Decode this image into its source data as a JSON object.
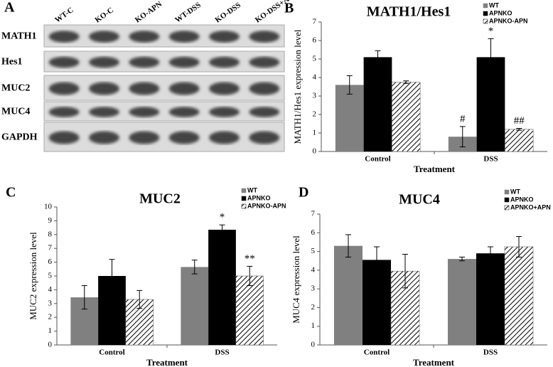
{
  "blot": {
    "panel": "A",
    "lanes": [
      "WT-C",
      "KO-C",
      "KO-APN",
      "WT-DSS",
      "KO-DSS",
      "KO-DSS+APN"
    ],
    "rows": [
      "MATH1",
      "Hes1",
      "MUC2",
      "MUC4",
      "GAPDH"
    ]
  },
  "chart_data": [
    {
      "type": "bar",
      "panel": "B",
      "title": "MATH1/Hes1",
      "x_label": "Treatment",
      "y_label": "MATH1/Hes1 expression level",
      "categories": [
        "Control",
        "DSS"
      ],
      "ylim": [
        0,
        7
      ],
      "yticks": [
        0,
        1,
        2,
        3,
        4,
        5,
        6,
        7
      ],
      "series": [
        {
          "name": "WT",
          "color": "#808080",
          "values": [
            3.6,
            0.8
          ],
          "errors": [
            0.5,
            0.55
          ],
          "markers": [
            null,
            "#"
          ]
        },
        {
          "name": "APNKO",
          "color": "#000000",
          "values": [
            5.1,
            5.1
          ],
          "errors": [
            0.35,
            1.0
          ],
          "markers": [
            null,
            "*"
          ]
        },
        {
          "name": "APNKO-APN",
          "color": "#000000",
          "pattern": "hatch",
          "values": [
            3.75,
            1.2
          ],
          "errors": [
            0.07,
            0.05
          ],
          "markers": [
            null,
            "##"
          ]
        }
      ]
    },
    {
      "type": "bar",
      "panel": "C",
      "title": "MUC2",
      "x_label": "Treatment",
      "y_label": "MUC2 expression level",
      "categories": [
        "Control",
        "DSS"
      ],
      "ylim": [
        0,
        10
      ],
      "yticks": [
        0,
        1,
        2,
        3,
        4,
        5,
        6,
        7,
        8,
        9,
        10
      ],
      "series": [
        {
          "name": "WT",
          "color": "#808080",
          "values": [
            3.45,
            5.65
          ],
          "errors": [
            0.85,
            0.5
          ]
        },
        {
          "name": "APNKO",
          "color": "#000000",
          "values": [
            5.0,
            8.35
          ],
          "errors": [
            1.2,
            0.35
          ],
          "markers": [
            null,
            "*"
          ]
        },
        {
          "name": "APNKO-APN",
          "color": "#000000",
          "pattern": "hatch",
          "values": [
            3.3,
            5.0
          ],
          "errors": [
            0.65,
            0.7
          ],
          "markers": [
            null,
            "**"
          ]
        }
      ]
    },
    {
      "type": "bar",
      "panel": "D",
      "title": "MUC4",
      "x_label": "Treatment",
      "y_label": "MUC4 expression level",
      "categories": [
        "Control",
        "DSS"
      ],
      "ylim": [
        0,
        7
      ],
      "yticks": [
        0,
        1,
        2,
        3,
        4,
        5,
        6,
        7
      ],
      "series": [
        {
          "name": "WT",
          "color": "#808080",
          "values": [
            5.3,
            4.6
          ],
          "errors": [
            0.6,
            0.1
          ]
        },
        {
          "name": "APNKO",
          "color": "#000000",
          "values": [
            4.55,
            4.9
          ],
          "errors": [
            0.7,
            0.35
          ]
        },
        {
          "name": "APNKO+APN",
          "color": "#000000",
          "pattern": "hatch",
          "values": [
            3.95,
            5.25
          ],
          "errors": [
            0.9,
            0.55
          ]
        }
      ]
    }
  ]
}
